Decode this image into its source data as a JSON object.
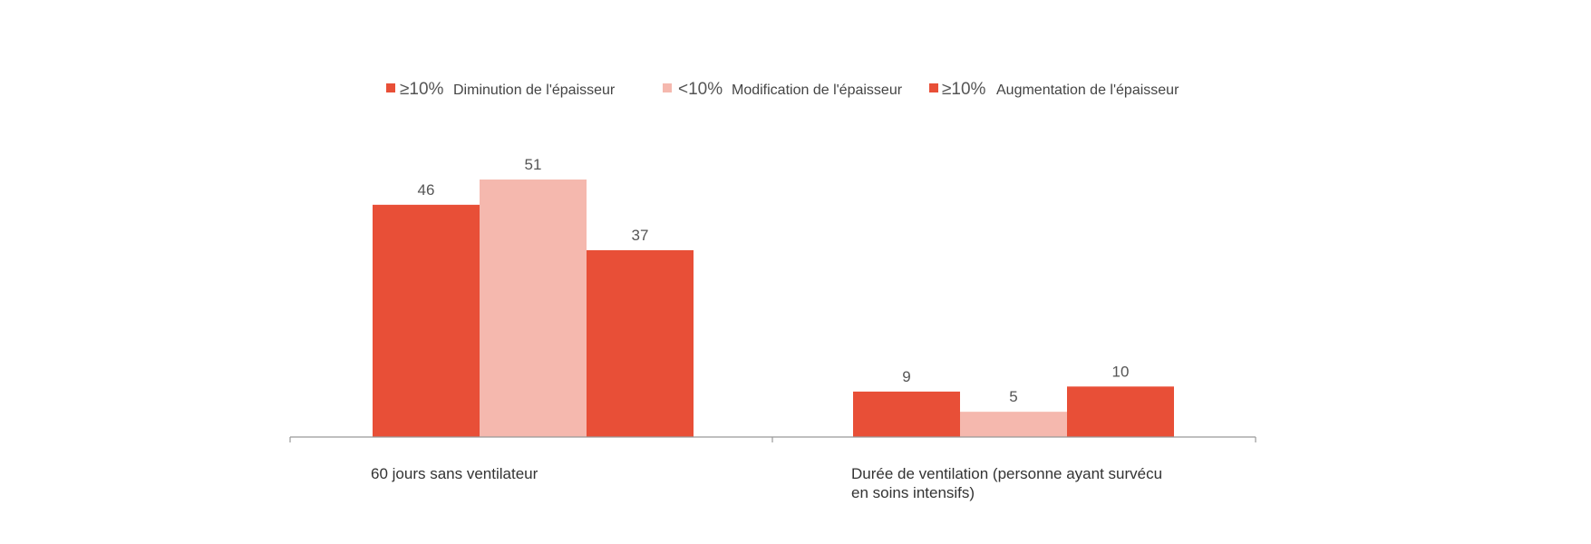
{
  "chart_data": {
    "type": "bar",
    "categories": [
      [
        "60 jours sans ventilateur"
      ],
      [
        "Durée de ventilation (personne ayant survécu",
        "en soins intensifs)"
      ]
    ],
    "series": [
      {
        "name": "Diminution de l'épaisseur",
        "prefix": "≥10%",
        "color": "#e84f37",
        "values": [
          46,
          9
        ]
      },
      {
        "name": "Modification de l'épaisseur",
        "prefix": "<10%",
        "color": "#f5b8ae",
        "values": [
          51,
          5
        ]
      },
      {
        "name": "Augmentation de l'épaisseur",
        "prefix": "≥10%",
        "color": "#e84f37",
        "values": [
          37,
          10
        ]
      }
    ],
    "ylim": [
      0,
      51
    ],
    "grid": false,
    "legend_position": "top-center",
    "axis_color": "#999999"
  }
}
